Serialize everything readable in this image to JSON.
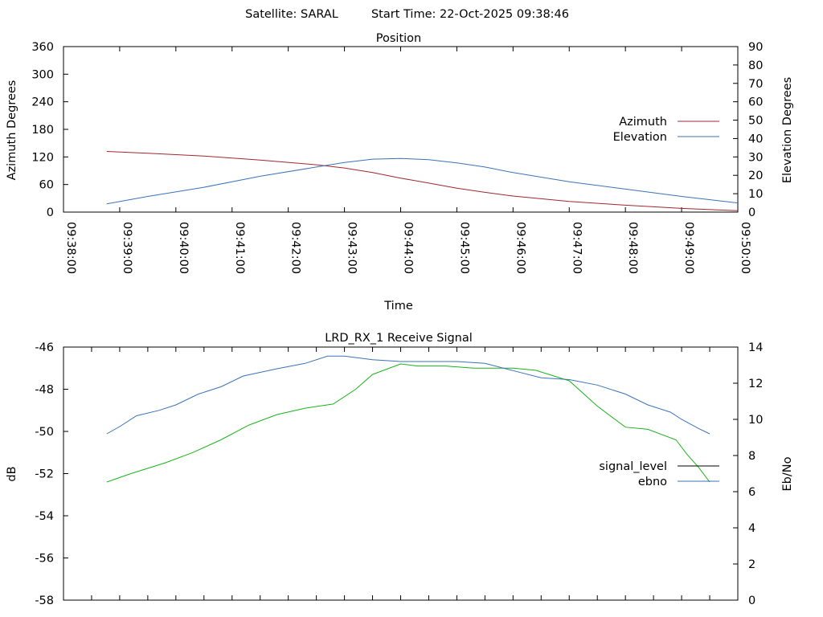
{
  "header": {
    "satellite_label": "Satellite: SARAL",
    "start_time_label": "Start Time: 22-Oct-2025 09:38:46"
  },
  "colors": {
    "azimuth": "#a0282d",
    "elevation": "#3a73b8",
    "signal_level": "#1ab31a",
    "ebno": "#3a73b8",
    "axis": "#000000"
  },
  "chart_data": [
    {
      "type": "line",
      "title": "Position",
      "xlabel": "Time",
      "ylabel": "Azimuth Degrees",
      "y2label": "Elevation Degrees",
      "ylim": [
        0,
        360
      ],
      "y2lim": [
        0,
        90
      ],
      "yticks": [
        "0",
        "60",
        "120",
        "180",
        "240",
        "300",
        "360"
      ],
      "y2ticks": [
        "0",
        "10",
        "20",
        "30",
        "40",
        "50",
        "60",
        "70",
        "80",
        "90"
      ],
      "xticks": [
        "09:38:00",
        "09:39:00",
        "09:40:00",
        "09:41:00",
        "09:42:00",
        "09:43:00",
        "09:44:00",
        "09:45:00",
        "09:46:00",
        "09:47:00",
        "09:48:00",
        "09:49:00",
        "09:50:00"
      ],
      "xrange_minutes": [
        0,
        12
      ],
      "legend_position": "right",
      "series": [
        {
          "name": "Azimuth",
          "axis": "y",
          "color": "#a0282d",
          "x": [
            0.77,
            1.5,
            2.5,
            3.5,
            4.5,
            5,
            5.5,
            6,
            6.5,
            7,
            7.5,
            8,
            9,
            10,
            11,
            12
          ],
          "y": [
            132,
            128,
            122,
            113,
            103,
            96,
            86,
            74,
            63,
            52,
            43,
            35,
            23,
            15,
            8,
            3
          ]
        },
        {
          "name": "Elevation",
          "axis": "y2",
          "color": "#3a73b8",
          "x": [
            0.77,
            1.5,
            2.5,
            3.5,
            4.5,
            5,
            5.5,
            6,
            6.5,
            7,
            7.5,
            8,
            9,
            10,
            11,
            12
          ],
          "y": [
            4.5,
            8.5,
            13.5,
            19.5,
            24.5,
            27,
            28.8,
            29.2,
            28.5,
            26.8,
            24.5,
            21.5,
            16.5,
            12.5,
            8.5,
            5
          ]
        }
      ]
    },
    {
      "type": "line",
      "title": "LRD_RX_1 Receive Signal",
      "xlabel": "",
      "ylabel": "dB",
      "y2label": "Eb/No",
      "ylim": [
        -58,
        -46
      ],
      "y2lim": [
        0,
        14
      ],
      "yticks": [
        "-58",
        "-56",
        "-54",
        "-52",
        "-50",
        "-48",
        "-46"
      ],
      "y2ticks": [
        "0",
        "2",
        "4",
        "6",
        "8",
        "10",
        "12",
        "14"
      ],
      "xrange_minutes": [
        0,
        12
      ],
      "legend_position": "right",
      "series": [
        {
          "name": "signal_level",
          "axis": "y",
          "legend_color": "#000000",
          "color": "#1ab31a",
          "x": [
            0.77,
            1.2,
            1.8,
            2.3,
            2.8,
            3.3,
            3.8,
            4.3,
            4.8,
            5.2,
            5.5,
            6.0,
            6.3,
            6.8,
            7.3,
            7.6,
            8.0,
            8.4,
            9.0,
            9.5,
            10.0,
            10.4,
            10.9,
            11.1,
            11.3,
            11.5
          ],
          "y": [
            -52.4,
            -52.0,
            -51.5,
            -51.0,
            -50.4,
            -49.7,
            -49.2,
            -48.9,
            -48.7,
            -48.0,
            -47.3,
            -46.8,
            -46.9,
            -46.9,
            -47.0,
            -47.0,
            -47.0,
            -47.1,
            -47.6,
            -48.8,
            -49.8,
            -49.9,
            -50.4,
            -51.1,
            -51.7,
            -52.4
          ]
        },
        {
          "name": "ebno",
          "axis": "y2",
          "color": "#3a73b8",
          "x": [
            0.77,
            1.0,
            1.3,
            1.7,
            2.0,
            2.4,
            2.8,
            3.2,
            3.5,
            3.8,
            4.3,
            4.7,
            5.0,
            5.5,
            6.0,
            6.5,
            7.0,
            7.5,
            8.0,
            8.5,
            9.0,
            9.5,
            10.0,
            10.4,
            10.8,
            11.0,
            11.3,
            11.5
          ],
          "y": [
            9.2,
            9.6,
            10.2,
            10.5,
            10.8,
            11.4,
            11.8,
            12.4,
            12.6,
            12.8,
            13.1,
            13.5,
            13.5,
            13.3,
            13.2,
            13.2,
            13.2,
            13.1,
            12.7,
            12.3,
            12.2,
            11.9,
            11.4,
            10.8,
            10.4,
            10.0,
            9.5,
            9.2
          ]
        }
      ]
    }
  ]
}
